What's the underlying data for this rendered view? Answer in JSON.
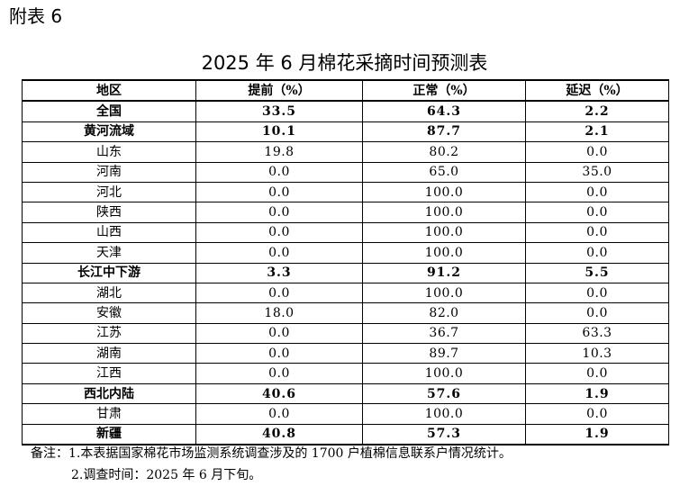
{
  "appendix_label": "附表 6",
  "title": "2025 年 6 月棉花采摘时间预测表",
  "columns": [
    "地区",
    "提前（%）",
    "正常（%）",
    "延迟（%）"
  ],
  "rows": [
    {
      "region": "全国",
      "early": "33.5",
      "normal": "64.3",
      "late": "2.2",
      "bold": true
    },
    {
      "region": "黄河流域",
      "early": "10.1",
      "normal": "87.7",
      "late": "2.1",
      "bold": true
    },
    {
      "region": "山东",
      "early": "19.8",
      "normal": "80.2",
      "late": "0.0",
      "bold": false
    },
    {
      "region": "河南",
      "early": "0.0",
      "normal": "65.0",
      "late": "35.0",
      "bold": false
    },
    {
      "region": "河北",
      "early": "0.0",
      "normal": "100.0",
      "late": "0.0",
      "bold": false
    },
    {
      "region": "陕西",
      "early": "0.0",
      "normal": "100.0",
      "late": "0.0",
      "bold": false
    },
    {
      "region": "山西",
      "early": "0.0",
      "normal": "100.0",
      "late": "0.0",
      "bold": false
    },
    {
      "region": "天津",
      "early": "0.0",
      "normal": "100.0",
      "late": "0.0",
      "bold": false
    },
    {
      "region": "长江中下游",
      "early": "3.3",
      "normal": "91.2",
      "late": "5.5",
      "bold": true
    },
    {
      "region": "湖北",
      "early": "0.0",
      "normal": "100.0",
      "late": "0.0",
      "bold": false
    },
    {
      "region": "安徽",
      "early": "18.0",
      "normal": "82.0",
      "late": "0.0",
      "bold": false
    },
    {
      "region": "江苏",
      "early": "0.0",
      "normal": "36.7",
      "late": "63.3",
      "bold": false
    },
    {
      "region": "湖南",
      "early": "0.0",
      "normal": "89.7",
      "late": "10.3",
      "bold": false
    },
    {
      "region": "江西",
      "early": "0.0",
      "normal": "100.0",
      "late": "0.0",
      "bold": false
    },
    {
      "region": "西北内陆",
      "early": "40.6",
      "normal": "57.6",
      "late": "1.9",
      "bold": true
    },
    {
      "region": "甘肃",
      "early": "0.0",
      "normal": "100.0",
      "late": "0.0",
      "bold": false
    },
    {
      "region": "新疆",
      "early": "40.8",
      "normal": "57.3",
      "late": "1.9",
      "bold": true
    }
  ],
  "notes": [
    "备注：1.本表据国家棉花市场监测系统调查涉及的 1700 户植棉信息联系户情况统计。",
    "2.调查时间：2025 年 6 月下旬。"
  ]
}
